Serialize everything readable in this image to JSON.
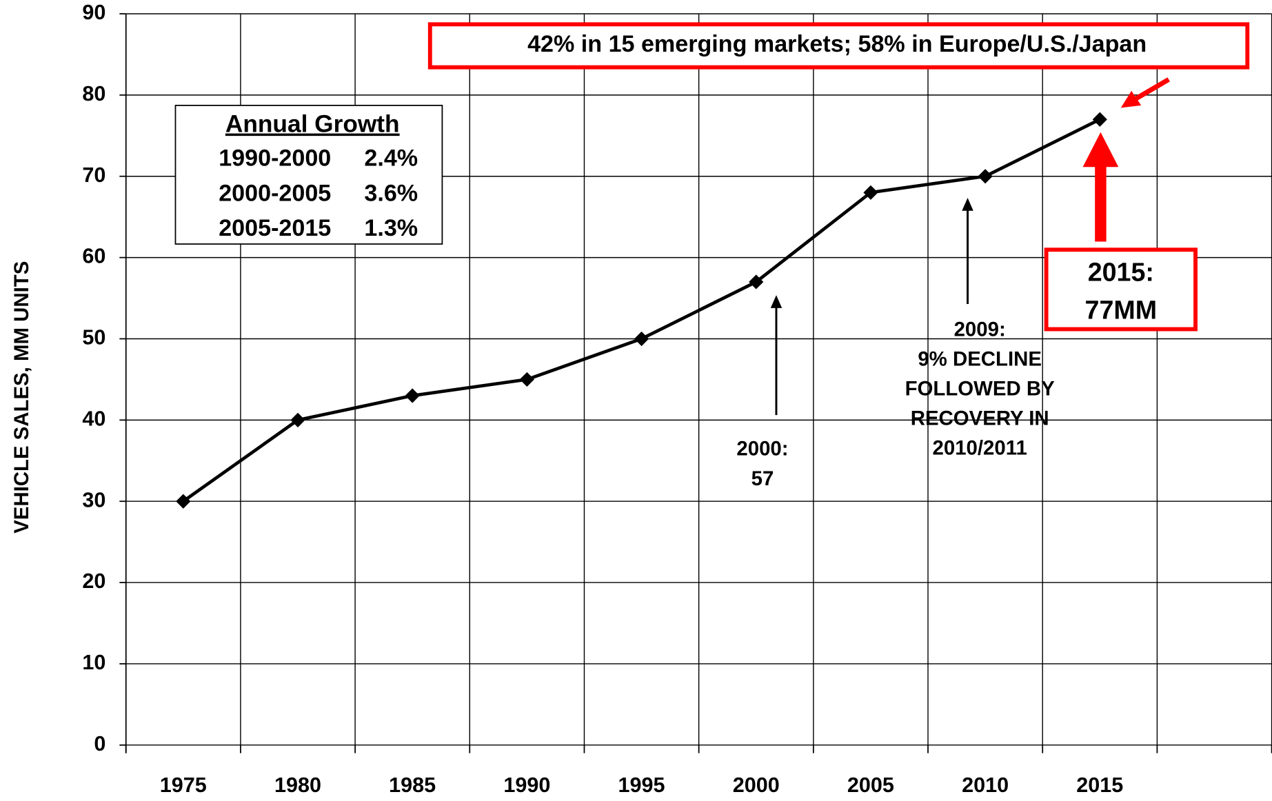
{
  "chart_data": {
    "type": "line",
    "y_label": "VEHICLE SALES, MM UNITS",
    "categories": [
      "1975",
      "1980",
      "1985",
      "1990",
      "1995",
      "2000",
      "2005",
      "2010",
      "2015",
      null
    ],
    "values": [
      30,
      40,
      43,
      45,
      50,
      57,
      68,
      70,
      77,
      null
    ],
    "color": "#000000",
    "ylim": [
      0,
      90
    ],
    "yticks": [
      0,
      10,
      20,
      30,
      40,
      50,
      60,
      70,
      80,
      90
    ],
    "grid": true,
    "growth_table": {
      "title": "Annual Growth",
      "rows": [
        [
          "1990-2000",
          "2.4%"
        ],
        [
          "2000-2005",
          "3.6%"
        ],
        [
          "2005-2015",
          "1.3%"
        ]
      ]
    },
    "share_note": "42% in 15 emerging markets; 58% in Europe/U.S./Japan",
    "callout_2015": [
      "2015:",
      "77MM"
    ],
    "callout_2000": [
      "2000:",
      "57"
    ],
    "callout_2009": [
      "2009:",
      "9% DECLINE",
      "FOLLOWED BY",
      "RECOVERY IN",
      "2010/2011"
    ]
  }
}
